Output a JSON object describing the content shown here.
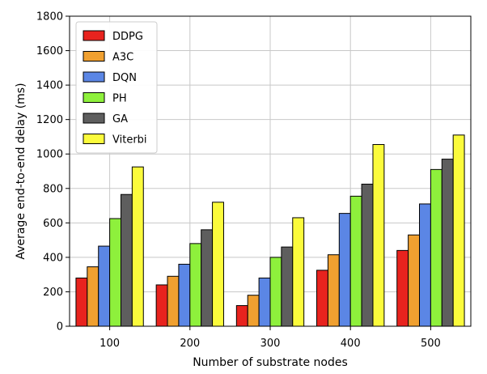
{
  "chart_data": {
    "type": "bar",
    "title": "",
    "xlabel": "Number of substrate nodes",
    "ylabel": "Average end-to-end delay (ms)",
    "categories": [
      "100",
      "200",
      "300",
      "400",
      "500"
    ],
    "ylim": [
      0,
      1800
    ],
    "yticks": [
      0,
      200,
      400,
      600,
      800,
      1000,
      1200,
      1400,
      1600,
      1800
    ],
    "grid": true,
    "legend_position": "top-left",
    "series": [
      {
        "name": "DDPG",
        "color": "#e8231e",
        "values": [
          280,
          240,
          120,
          325,
          440
        ]
      },
      {
        "name": "A3C",
        "color": "#f0a030",
        "values": [
          345,
          290,
          180,
          415,
          530
        ]
      },
      {
        "name": "DQN",
        "color": "#5b86e5",
        "values": [
          465,
          360,
          280,
          655,
          710
        ]
      },
      {
        "name": "PH",
        "color": "#8ef03c",
        "values": [
          625,
          480,
          400,
          755,
          910
        ]
      },
      {
        "name": "GA",
        "color": "#5e5e5e",
        "values": [
          765,
          560,
          460,
          825,
          970
        ]
      },
      {
        "name": "Viterbi",
        "color": "#fbfb3c",
        "values": [
          925,
          720,
          630,
          1055,
          1110
        ]
      }
    ]
  }
}
